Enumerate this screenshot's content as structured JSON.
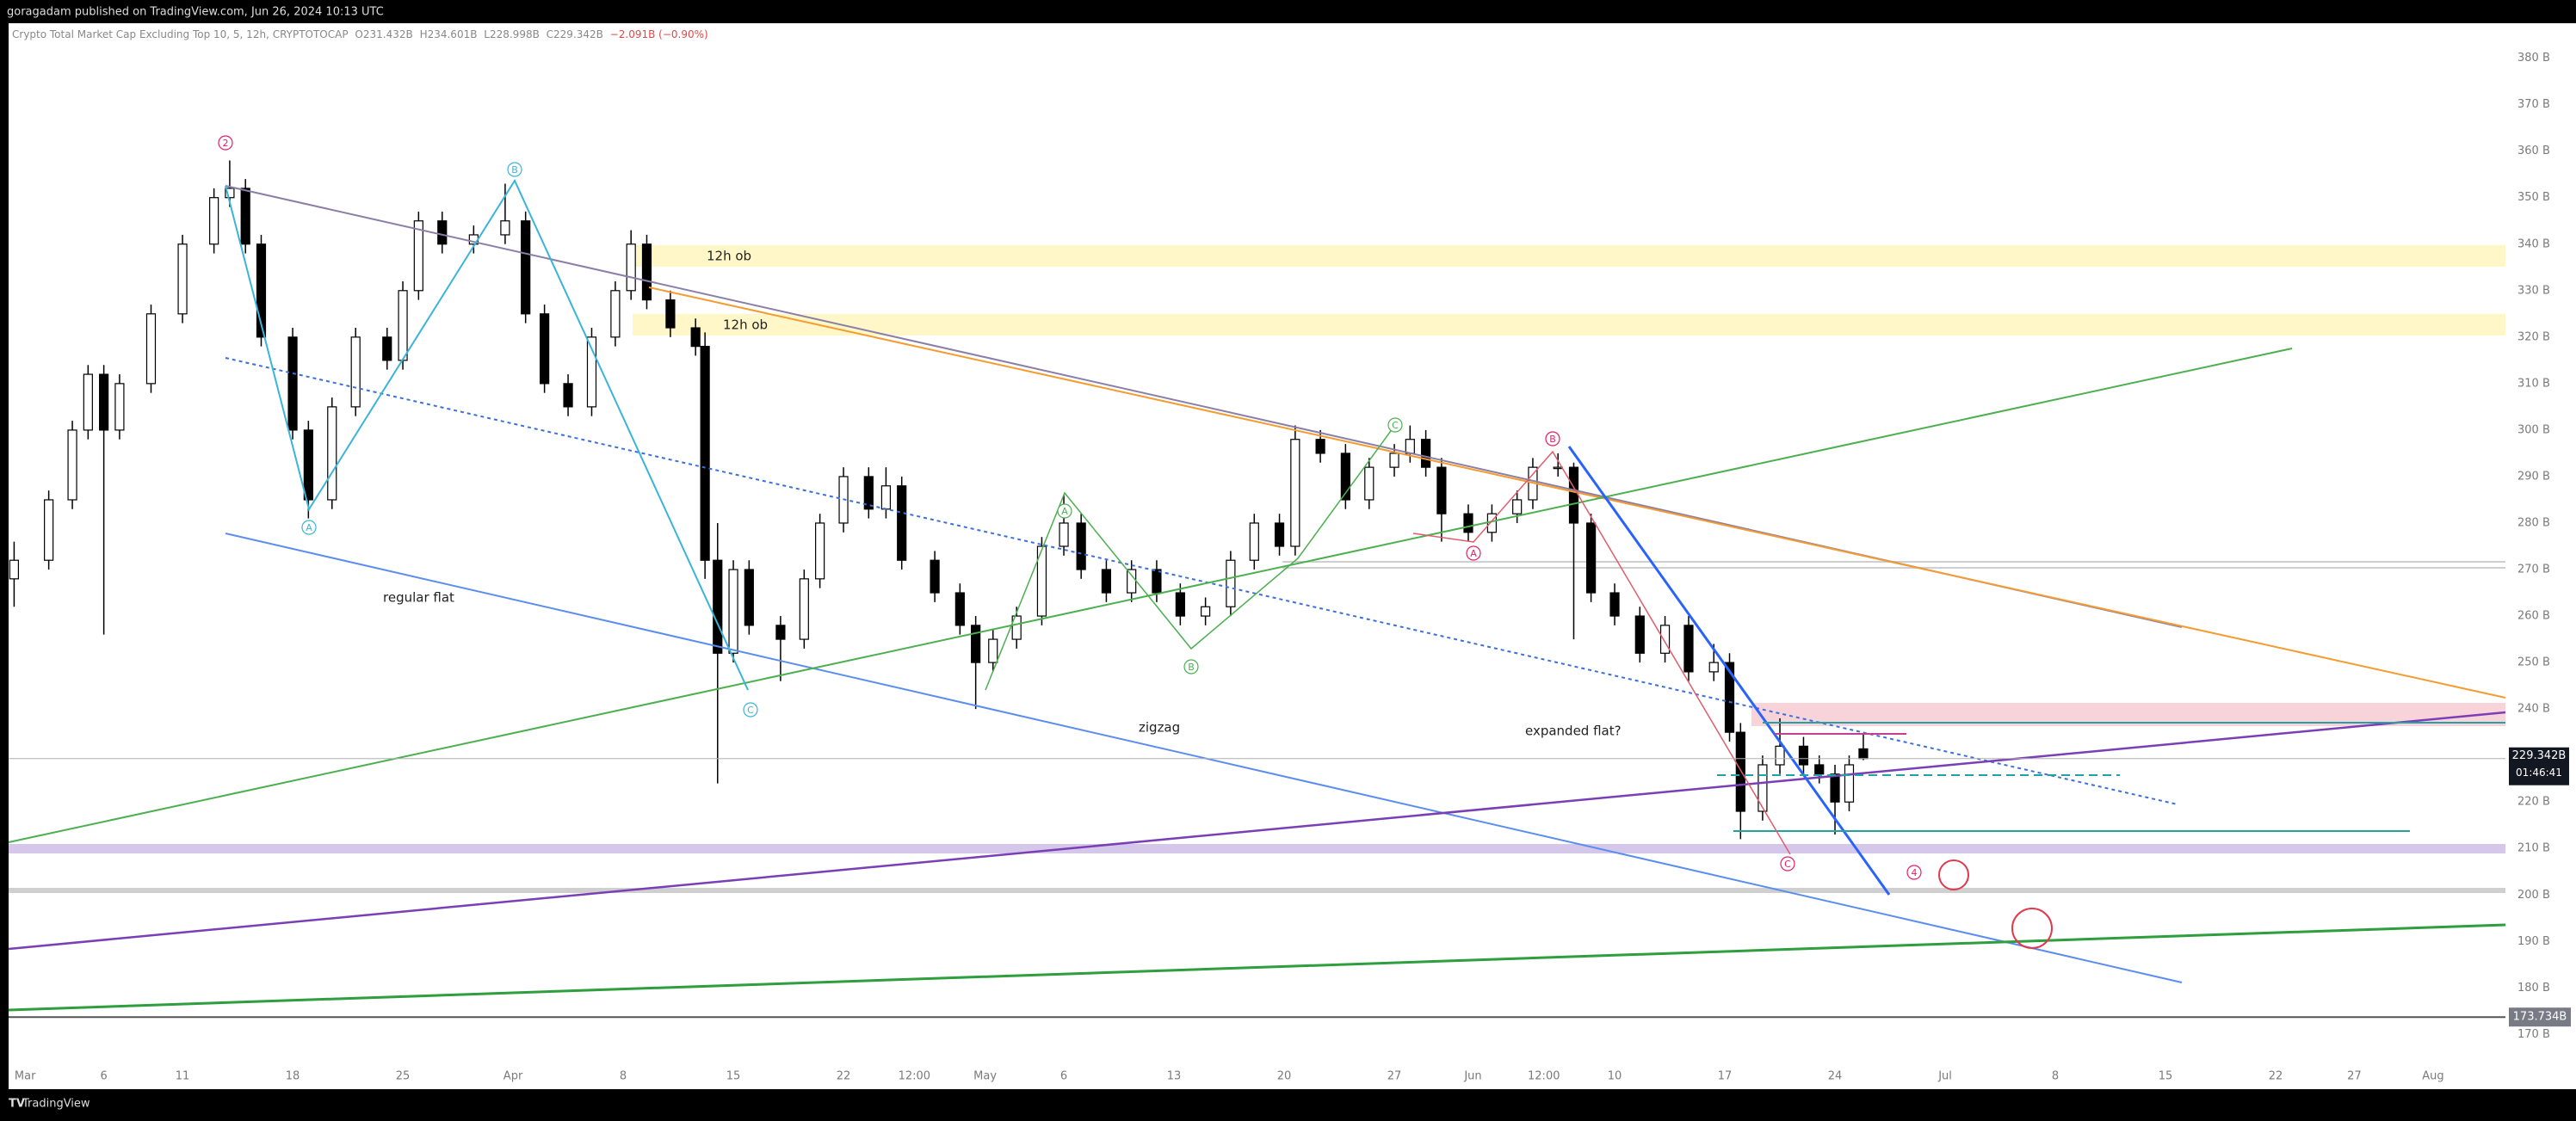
{
  "chart_data": {
    "type": "candlestick",
    "attribution": "goragadam published on TradingView.com, Jun 26, 2024 10:13 UTC",
    "legend": {
      "symbol": "Crypto Total Market Cap Excluding Top 10, 5, 12h, CRYPTOTOCAP",
      "open": "O231.432B",
      "high": "H234.601B",
      "low": "L228.998B",
      "close": "C229.342B",
      "change": "−2.091B (−0.90%)"
    },
    "brand": "TradingView",
    "up_color": "#ffffff",
    "down_color": "#000000",
    "outline_color": "#000000",
    "xlim": [
      -1.05,
      157.6
    ],
    "ylim": [
      166,
      384
    ],
    "grid": false,
    "xticks": [
      {
        "value": 0,
        "label": "Mar"
      },
      {
        "value": 5,
        "label": "6"
      },
      {
        "value": 10,
        "label": "11"
      },
      {
        "value": 17,
        "label": "18"
      },
      {
        "value": 24,
        "label": "25"
      },
      {
        "value": 31,
        "label": "Apr"
      },
      {
        "value": 38,
        "label": "8"
      },
      {
        "value": 45,
        "label": "15"
      },
      {
        "value": 52,
        "label": "22"
      },
      {
        "value": 56.5,
        "label": "12:00"
      },
      {
        "value": 61,
        "label": "May"
      },
      {
        "value": 66,
        "label": "6"
      },
      {
        "value": 73,
        "label": "13"
      },
      {
        "value": 80,
        "label": "20"
      },
      {
        "value": 87,
        "label": "27"
      },
      {
        "value": 92,
        "label": "Jun"
      },
      {
        "value": 96.5,
        "label": "12:00"
      },
      {
        "value": 101,
        "label": "10"
      },
      {
        "value": 108,
        "label": "17"
      },
      {
        "value": 115,
        "label": "24"
      },
      {
        "value": 122,
        "label": "Jul"
      },
      {
        "value": 129,
        "label": "8"
      },
      {
        "value": 136,
        "label": "15"
      },
      {
        "value": 143,
        "label": "22"
      },
      {
        "value": 148,
        "label": "27"
      },
      {
        "value": 153,
        "label": "Aug"
      }
    ],
    "yticks": [
      {
        "value": 380,
        "label": "380 B"
      },
      {
        "value": 370,
        "label": "370 B"
      },
      {
        "value": 360,
        "label": "360 B"
      },
      {
        "value": 350,
        "label": "350 B"
      },
      {
        "value": 340,
        "label": "340 B"
      },
      {
        "value": 330,
        "label": "330 B"
      },
      {
        "value": 320,
        "label": "320 B"
      },
      {
        "value": 310,
        "label": "310 B"
      },
      {
        "value": 300,
        "label": "300 B"
      },
      {
        "value": 290,
        "label": "290 B"
      },
      {
        "value": 280,
        "label": "280 B"
      },
      {
        "value": 270,
        "label": "270 B"
      },
      {
        "value": 260,
        "label": "260 B"
      },
      {
        "value": 250,
        "label": "250 B"
      },
      {
        "value": 240,
        "label": "240 B"
      },
      {
        "value": 220,
        "label": "220 B"
      },
      {
        "value": 210,
        "label": "210 B"
      },
      {
        "value": 200,
        "label": "200 B"
      },
      {
        "value": 190,
        "label": "190 B"
      },
      {
        "value": 180,
        "label": "180 B"
      },
      {
        "value": 170,
        "label": "170 B"
      }
    ],
    "price_marker": {
      "value": 229.342,
      "label": "229.342B",
      "countdown": "01:46:41"
    },
    "low_marker": {
      "value": 173.734,
      "label": "173.734B"
    },
    "candles": [
      {
        "x": -0.7,
        "open": 268,
        "high": 276,
        "low": 262,
        "close": 272
      },
      {
        "x": 1.5,
        "open": 272,
        "high": 287,
        "low": 270,
        "close": 285
      },
      {
        "x": 3,
        "open": 285,
        "high": 302,
        "low": 283,
        "close": 300
      },
      {
        "x": 4,
        "open": 300,
        "high": 314,
        "low": 298,
        "close": 312
      },
      {
        "x": 5,
        "open": 312,
        "high": 314,
        "low": 256,
        "close": 300
      },
      {
        "x": 6,
        "open": 300,
        "high": 312,
        "low": 298,
        "close": 310
      },
      {
        "x": 8,
        "open": 310,
        "high": 327,
        "low": 308,
        "close": 325
      },
      {
        "x": 10,
        "open": 325,
        "high": 342,
        "low": 323,
        "close": 340
      },
      {
        "x": 12,
        "open": 340,
        "high": 352,
        "low": 338,
        "close": 350
      },
      {
        "x": 13,
        "open": 350,
        "high": 358,
        "low": 348,
        "close": 352
      },
      {
        "x": 14,
        "open": 352,
        "high": 354,
        "low": 338,
        "close": 340
      },
      {
        "x": 15,
        "open": 340,
        "high": 342,
        "low": 318,
        "close": 320
      },
      {
        "x": 17,
        "open": 320,
        "high": 322,
        "low": 298,
        "close": 300
      },
      {
        "x": 18,
        "open": 300,
        "high": 302,
        "low": 281,
        "close": 285
      },
      {
        "x": 19.5,
        "open": 285,
        "high": 307,
        "low": 283,
        "close": 305
      },
      {
        "x": 21,
        "open": 305,
        "high": 322,
        "low": 303,
        "close": 320
      },
      {
        "x": 23,
        "open": 320,
        "high": 322,
        "low": 313,
        "close": 315
      },
      {
        "x": 24,
        "open": 315,
        "high": 332,
        "low": 313,
        "close": 330
      },
      {
        "x": 25,
        "open": 330,
        "high": 347,
        "low": 328,
        "close": 345
      },
      {
        "x": 26.5,
        "open": 345,
        "high": 347,
        "low": 338,
        "close": 340
      },
      {
        "x": 28.5,
        "open": 340,
        "high": 344,
        "low": 338,
        "close": 342
      },
      {
        "x": 30.5,
        "open": 342,
        "high": 353,
        "low": 340,
        "close": 345
      },
      {
        "x": 31.8,
        "open": 345,
        "high": 347,
        "low": 323,
        "close": 325
      },
      {
        "x": 33,
        "open": 325,
        "high": 327,
        "low": 308,
        "close": 310
      },
      {
        "x": 34.5,
        "open": 310,
        "high": 312,
        "low": 303,
        "close": 305
      },
      {
        "x": 36,
        "open": 305,
        "high": 322,
        "low": 303,
        "close": 320
      },
      {
        "x": 37.5,
        "open": 320,
        "high": 332,
        "low": 318,
        "close": 330
      },
      {
        "x": 38.5,
        "open": 330,
        "high": 343,
        "low": 328,
        "close": 340
      },
      {
        "x": 39.5,
        "open": 340,
        "high": 342,
        "low": 326,
        "close": 328
      },
      {
        "x": 41,
        "open": 328,
        "high": 330,
        "low": 320,
        "close": 322
      },
      {
        "x": 42.6,
        "open": 322,
        "high": 324,
        "low": 316,
        "close": 318
      },
      {
        "x": 43.2,
        "open": 318,
        "high": 321,
        "low": 268,
        "close": 272
      },
      {
        "x": 44,
        "open": 272,
        "high": 280,
        "low": 224,
        "close": 252
      },
      {
        "x": 45,
        "open": 252,
        "high": 272,
        "low": 250,
        "close": 270
      },
      {
        "x": 46,
        "open": 270,
        "high": 272,
        "low": 256,
        "close": 258
      },
      {
        "x": 48,
        "open": 258,
        "high": 260,
        "low": 246,
        "close": 255
      },
      {
        "x": 49.5,
        "open": 255,
        "high": 270,
        "low": 253,
        "close": 268
      },
      {
        "x": 50.5,
        "open": 268,
        "high": 282,
        "low": 266,
        "close": 280
      },
      {
        "x": 52,
        "open": 280,
        "high": 292,
        "low": 278,
        "close": 290
      },
      {
        "x": 53.6,
        "open": 290,
        "high": 292,
        "low": 281,
        "close": 283
      },
      {
        "x": 54.7,
        "open": 283,
        "high": 292,
        "low": 281,
        "close": 288
      },
      {
        "x": 55.7,
        "open": 288,
        "high": 290,
        "low": 270,
        "close": 272
      },
      {
        "x": 57.8,
        "open": 272,
        "high": 274,
        "low": 263,
        "close": 265
      },
      {
        "x": 59.4,
        "open": 265,
        "high": 267,
        "low": 256,
        "close": 258
      },
      {
        "x": 60.4,
        "open": 258,
        "high": 260,
        "low": 240,
        "close": 250
      },
      {
        "x": 61.5,
        "open": 250,
        "high": 257,
        "low": 248,
        "close": 255
      },
      {
        "x": 63,
        "open": 255,
        "high": 262,
        "low": 253,
        "close": 260
      },
      {
        "x": 64.6,
        "open": 260,
        "high": 277,
        "low": 258,
        "close": 275
      },
      {
        "x": 66,
        "open": 275,
        "high": 286,
        "low": 273,
        "close": 280
      },
      {
        "x": 67.1,
        "open": 280,
        "high": 282,
        "low": 268,
        "close": 270
      },
      {
        "x": 68.7,
        "open": 270,
        "high": 272,
        "low": 263,
        "close": 265
      },
      {
        "x": 70.3,
        "open": 265,
        "high": 272,
        "low": 263,
        "close": 270
      },
      {
        "x": 71.9,
        "open": 270,
        "high": 272,
        "low": 263,
        "close": 265
      },
      {
        "x": 73.4,
        "open": 265,
        "high": 267,
        "low": 258,
        "close": 260
      },
      {
        "x": 75,
        "open": 260,
        "high": 264,
        "low": 258,
        "close": 262
      },
      {
        "x": 76.6,
        "open": 262,
        "high": 274,
        "low": 260,
        "close": 272
      },
      {
        "x": 78.1,
        "open": 272,
        "high": 282,
        "low": 270,
        "close": 280
      },
      {
        "x": 79.7,
        "open": 280,
        "high": 282,
        "low": 273,
        "close": 275
      },
      {
        "x": 80.7,
        "open": 275,
        "high": 301,
        "low": 273,
        "close": 298
      },
      {
        "x": 82.3,
        "open": 298,
        "high": 300,
        "low": 293,
        "close": 295
      },
      {
        "x": 83.9,
        "open": 295,
        "high": 297,
        "low": 283,
        "close": 285
      },
      {
        "x": 85.4,
        "open": 285,
        "high": 294,
        "low": 283,
        "close": 292
      },
      {
        "x": 87,
        "open": 292,
        "high": 297,
        "low": 290,
        "close": 295
      },
      {
        "x": 88,
        "open": 295,
        "high": 301,
        "low": 293,
        "close": 298
      },
      {
        "x": 89,
        "open": 298,
        "high": 300,
        "low": 290,
        "close": 292
      },
      {
        "x": 90,
        "open": 292,
        "high": 294,
        "low": 276,
        "close": 282
      },
      {
        "x": 91.7,
        "open": 282,
        "high": 284,
        "low": 276,
        "close": 278
      },
      {
        "x": 93.2,
        "open": 278,
        "high": 284,
        "low": 276,
        "close": 282
      },
      {
        "x": 94.8,
        "open": 282,
        "high": 287,
        "low": 280,
        "close": 285
      },
      {
        "x": 95.8,
        "open": 285,
        "high": 294,
        "low": 283,
        "close": 292
      },
      {
        "x": 97.4,
        "open": 292,
        "high": 295,
        "low": 290,
        "close": 292
      },
      {
        "x": 98.4,
        "open": 292,
        "high": 293,
        "low": 255,
        "close": 280
      },
      {
        "x": 99.5,
        "open": 280,
        "high": 282,
        "low": 263,
        "close": 265
      },
      {
        "x": 101,
        "open": 265,
        "high": 267,
        "low": 258,
        "close": 260
      },
      {
        "x": 102.6,
        "open": 260,
        "high": 262,
        "low": 250,
        "close": 252
      },
      {
        "x": 104.2,
        "open": 252,
        "high": 260,
        "low": 250,
        "close": 258
      },
      {
        "x": 105.7,
        "open": 258,
        "high": 260,
        "low": 246,
        "close": 248
      },
      {
        "x": 107.3,
        "open": 248,
        "high": 254,
        "low": 246,
        "close": 250
      },
      {
        "x": 108.3,
        "open": 250,
        "high": 252,
        "low": 233,
        "close": 235
      },
      {
        "x": 109,
        "open": 235,
        "high": 237,
        "low": 212,
        "close": 218
      },
      {
        "x": 110.4,
        "open": 218,
        "high": 230,
        "low": 216,
        "close": 228
      },
      {
        "x": 111.5,
        "open": 228,
        "high": 238,
        "low": 226,
        "close": 232
      },
      {
        "x": 113,
        "open": 232,
        "high": 234,
        "low": 226,
        "close": 228
      },
      {
        "x": 114,
        "open": 228,
        "high": 230,
        "low": 224,
        "close": 226
      },
      {
        "x": 115,
        "open": 226,
        "high": 228,
        "low": 213,
        "close": 220
      },
      {
        "x": 115.9,
        "open": 220,
        "high": 230,
        "low": 218,
        "close": 228
      },
      {
        "x": 116.8,
        "open": 231.432,
        "high": 234.601,
        "low": 228.998,
        "close": 229.342
      }
    ],
    "annotations": {
      "zone_labels": [
        "12h ob",
        "12h ob"
      ],
      "pattern_labels": [
        "regular flat",
        "zigzag",
        "expanded flat?"
      ],
      "wave_labels": [
        "2",
        "B",
        "A",
        "C",
        "A",
        "B",
        "C",
        "B",
        "A",
        "C",
        "4"
      ]
    }
  }
}
